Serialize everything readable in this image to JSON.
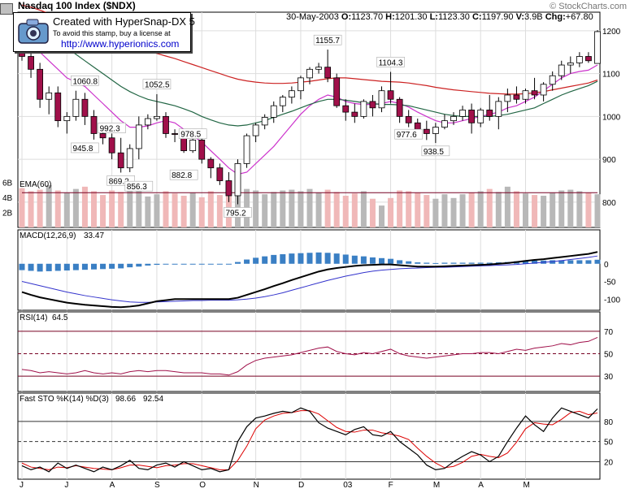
{
  "header": {
    "title": "Nasdaq 100 Index ($NDX)",
    "credit": "© StockCharts.com",
    "date": "30-May-2003",
    "open_label": "O:",
    "open": "1123.70",
    "high_label": "H:",
    "high": "1201.30",
    "low_label": "L:",
    "low": "1123.30",
    "close_label": "C:",
    "close": "1197.90",
    "volume_label": "V:",
    "volume": "3.9B",
    "change_label": "Chg:",
    "change": "+67.80"
  },
  "stamp": {
    "line1": "Created with HyperSnap-DX 5",
    "line2": "To avoid this stamp, buy a license at",
    "line3": "http://www.hyperionics.com"
  },
  "colors": {
    "up": "#ffffff",
    "down": "#a0104a",
    "ema_short": "#cc33cc",
    "ema_mid": "#226644",
    "ema_long": "#cc2222",
    "volume_up": "#b8b8b8",
    "volume_down": "#f0b8b8",
    "macd_hist": "#3a7fc4",
    "macd_line": "#000000",
    "macd_signal": "#3333cc",
    "rsi_line": "#a0104a",
    "sto_k": "#000000",
    "sto_d": "#dd0000"
  },
  "chart_data": [
    {
      "type": "candlestick",
      "title": "Nasdaq 100 Index ($NDX)",
      "period": "weekly",
      "x_months": [
        "J",
        "J",
        "A",
        "S",
        "O",
        "N",
        "D",
        "03",
        "F",
        "M",
        "A",
        "M"
      ],
      "ylim": [
        760,
        1230
      ],
      "yticks": [
        800,
        900,
        1000,
        1100,
        1200
      ],
      "grid": true,
      "ohlc": [
        [
          1200,
          1215,
          1130,
          1140
        ],
        [
          1140,
          1160,
          1090,
          1110
        ],
        [
          1110,
          1125,
          1020,
          1040
        ],
        [
          1040,
          1070,
          1005,
          1055
        ],
        [
          1055,
          1070,
          975,
          990
        ],
        [
          990,
          1010,
          960,
          1000
        ],
        [
          1000,
          1060,
          990,
          1040
        ],
        [
          1040,
          1055,
          980,
          1000
        ],
        [
          1000,
          1015,
          946,
          960
        ],
        [
          960,
          985,
          935,
          950
        ],
        [
          950,
          960,
          900,
          915
        ],
        [
          915,
          950,
          869,
          880
        ],
        [
          880,
          935,
          870,
          925
        ],
        [
          925,
          1000,
          900,
          980
        ],
        [
          980,
          1005,
          970,
          995
        ],
        [
          995,
          1052,
          990,
          1000
        ],
        [
          1000,
          1010,
          950,
          960
        ],
        [
          960,
          970,
          940,
          958
        ],
        [
          958,
          965,
          915,
          920
        ],
        [
          920,
          960,
          915,
          945
        ],
        [
          945,
          960,
          890,
          900
        ],
        [
          900,
          905,
          856,
          880
        ],
        [
          880,
          890,
          840,
          850
        ],
        [
          850,
          870,
          800,
          815
        ],
        [
          815,
          900,
          795,
          890
        ],
        [
          890,
          960,
          880,
          955
        ],
        [
          955,
          985,
          940,
          980
        ],
        [
          980,
          1005,
          970,
          998
        ],
        [
          998,
          1035,
          985,
          1025
        ],
        [
          1025,
          1050,
          1010,
          1045
        ],
        [
          1045,
          1070,
          1030,
          1060
        ],
        [
          1060,
          1095,
          1040,
          1090
        ],
        [
          1090,
          1115,
          1075,
          1110
        ],
        [
          1110,
          1125,
          1100,
          1115
        ],
        [
          1115,
          1156,
          1080,
          1090
        ],
        [
          1090,
          1100,
          1020,
          1025
        ],
        [
          1025,
          1040,
          990,
          1010
        ],
        [
          1010,
          1030,
          985,
          1000
        ],
        [
          1000,
          1040,
          995,
          1035
        ],
        [
          1035,
          1050,
          1000,
          1020
        ],
        [
          1020,
          1070,
          1010,
          1060
        ],
        [
          1060,
          1104,
          1030,
          1040
        ],
        [
          1040,
          1045,
          985,
          1000
        ],
        [
          1000,
          1015,
          975,
          985
        ],
        [
          985,
          995,
          960,
          970
        ],
        [
          970,
          990,
          945,
          960
        ],
        [
          960,
          985,
          938,
          975
        ],
        [
          975,
          1005,
          970,
          990
        ],
        [
          990,
          1010,
          980,
          1000
        ],
        [
          1000,
          1025,
          990,
          1015
        ],
        [
          1015,
          1030,
          960,
          985
        ],
        [
          985,
          1020,
          975,
          1015
        ],
        [
          1015,
          1050,
          990,
          1000
        ],
        [
          1000,
          1045,
          970,
          1035
        ],
        [
          1035,
          1065,
          1010,
          1050
        ],
        [
          1050,
          1070,
          1030,
          1040
        ],
        [
          1040,
          1065,
          1030,
          1060
        ],
        [
          1060,
          1090,
          1040,
          1050
        ],
        [
          1050,
          1080,
          1035,
          1075
        ],
        [
          1075,
          1105,
          1060,
          1095
        ],
        [
          1095,
          1130,
          1085,
          1120
        ],
        [
          1120,
          1140,
          1100,
          1125
        ],
        [
          1125,
          1150,
          1115,
          1140
        ],
        [
          1140,
          1150,
          1125,
          1130
        ],
        [
          1123.7,
          1201.3,
          1123.3,
          1197.9
        ]
      ],
      "price_labels": [
        {
          "text": "1060.8",
          "value": 1060.8,
          "bar": 7
        },
        {
          "text": "992.3",
          "value": 992.3,
          "bar": 10
        },
        {
          "text": "1052.5",
          "value": 1052.5,
          "bar": 15
        },
        {
          "text": "978.5",
          "value": 978.5,
          "bar": 19
        },
        {
          "text": "945.8",
          "value": 945.8,
          "bar": 7
        },
        {
          "text": "869.2",
          "value": 869.2,
          "bar": 11
        },
        {
          "text": "856.3",
          "value": 856.3,
          "bar": 13
        },
        {
          "text": "882.8",
          "value": 882.8,
          "bar": 18
        },
        {
          "text": "795.2",
          "value": 795.2,
          "bar": 24
        },
        {
          "text": "1155.7",
          "value": 1155.7,
          "bar": 34
        },
        {
          "text": "1104.3",
          "value": 1104.3,
          "bar": 41
        },
        {
          "text": "977.6",
          "value": 977.6,
          "bar": 43
        },
        {
          "text": "938.5",
          "value": 938.5,
          "bar": 46
        }
      ],
      "overlays": [
        {
          "name": "",
          "color": "#cc33cc",
          "values": [
            1180,
            1165,
            1150,
            1130,
            1110,
            1090,
            1080,
            1070,
            1050,
            1030,
            1010,
            990,
            975,
            975,
            978,
            985,
            990,
            985,
            970,
            955,
            940,
            920,
            900,
            880,
            865,
            870,
            890,
            910,
            930,
            955,
            980,
            1005,
            1025,
            1040,
            1050,
            1045,
            1035,
            1030,
            1028,
            1028,
            1030,
            1035,
            1030,
            1022,
            1010,
            1000,
            990,
            985,
            985,
            990,
            995,
            1000,
            1005,
            1010,
            1020,
            1025,
            1035,
            1045,
            1060,
            1075,
            1090,
            1100,
            1105,
            1108,
            1120
          ]
        },
        {
          "name": "",
          "color": "#226644",
          "values": [
            1230,
            1220,
            1205,
            1190,
            1175,
            1160,
            1145,
            1130,
            1115,
            1100,
            1085,
            1070,
            1058,
            1048,
            1040,
            1035,
            1030,
            1025,
            1018,
            1010,
            1000,
            992,
            985,
            980,
            978,
            980,
            985,
            990,
            998,
            1005,
            1012,
            1020,
            1028,
            1035,
            1040,
            1040,
            1038,
            1035,
            1032,
            1030,
            1028,
            1028,
            1027,
            1025,
            1020,
            1015,
            1010,
            1005,
            1002,
            1000,
            1000,
            1000,
            1000,
            1002,
            1005,
            1010,
            1015,
            1020,
            1030,
            1040,
            1050,
            1058,
            1065,
            1072,
            1082
          ]
        },
        {
          "name": "",
          "color": "#cc2222",
          "values": [
            1260,
            1255,
            1248,
            1240,
            1232,
            1224,
            1216,
            1208,
            1200,
            1192,
            1184,
            1176,
            1168,
            1160,
            1153,
            1147,
            1141,
            1135,
            1128,
            1121,
            1114,
            1107,
            1100,
            1093,
            1087,
            1083,
            1080,
            1078,
            1077,
            1077,
            1078,
            1080,
            1082,
            1085,
            1088,
            1090,
            1090,
            1088,
            1086,
            1084,
            1082,
            1081,
            1080,
            1078,
            1075,
            1072,
            1068,
            1065,
            1062,
            1060,
            1058,
            1056,
            1054,
            1053,
            1052,
            1052,
            1053,
            1055,
            1058,
            1062,
            1066,
            1070,
            1074,
            1078,
            1085
          ]
        }
      ]
    },
    {
      "type": "bar",
      "title": "EMA(60)",
      "yticks_labels": [
        "2B",
        "4B",
        "6B"
      ],
      "yticks": [
        2,
        4,
        6
      ],
      "ylim": [
        0,
        7
      ],
      "values": [
        5.2,
        4.8,
        5.0,
        5.6,
        4.9,
        4.6,
        5.1,
        5.4,
        4.8,
        4.3,
        4.9,
        4.7,
        5.2,
        5.5,
        4.1,
        4.4,
        4.8,
        4.5,
        4.2,
        4.6,
        4.0,
        4.8,
        4.3,
        5.0,
        4.6,
        5.1,
        4.9,
        4.4,
        4.7,
        4.9,
        5.0,
        4.8,
        5.1,
        4.6,
        5.0,
        4.7,
        4.2,
        4.5,
        4.8,
        3.8,
        2.9,
        3.9,
        4.9,
        4.8,
        4.6,
        4.3,
        3.8,
        4.4,
        3.9,
        4.4,
        4.6,
        4.8,
        5.1,
        4.7,
        5.4,
        4.8,
        4.5,
        4.3,
        4.2,
        4.6,
        4.9,
        5.0,
        4.8,
        4.6,
        4.4
      ],
      "ema": [
        4.6,
        4.6,
        4.6,
        4.6,
        4.6,
        4.6,
        4.6,
        4.6,
        4.6,
        4.6,
        4.6,
        4.6,
        4.6,
        4.6,
        4.6,
        4.6,
        4.6,
        4.6,
        4.6,
        4.6,
        4.6,
        4.6,
        4.6,
        4.6,
        4.6,
        4.6,
        4.6,
        4.6,
        4.6,
        4.6,
        4.6,
        4.6,
        4.6,
        4.6,
        4.6,
        4.6,
        4.6,
        4.6,
        4.6,
        4.6,
        4.6,
        4.6,
        4.6,
        4.6,
        4.6,
        4.6,
        4.6,
        4.6,
        4.6,
        4.6,
        4.6,
        4.6,
        4.6,
        4.6,
        4.6,
        4.6,
        4.6,
        4.6,
        4.6,
        4.6,
        4.6,
        4.6,
        4.6,
        4.6,
        4.6
      ]
    },
    {
      "type": "line",
      "title": "MACD(12,26,9)",
      "value_label": "33.47",
      "ylim": [
        -120,
        50
      ],
      "yticks": [
        0,
        -50,
        -100
      ],
      "macd": [
        -80,
        -88,
        -95,
        -100,
        -105,
        -110,
        -113,
        -116,
        -118,
        -120,
        -122,
        -123,
        -121,
        -118,
        -112,
        -106,
        -103,
        -100,
        -100,
        -100,
        -100,
        -100,
        -100,
        -100,
        -96,
        -88,
        -80,
        -72,
        -63,
        -55,
        -46,
        -38,
        -30,
        -22,
        -16,
        -12,
        -9,
        -6,
        -4,
        -3,
        -2,
        -2,
        -4,
        -6,
        -8,
        -8,
        -8,
        -7,
        -6,
        -5,
        -4,
        -3,
        -2,
        0,
        2,
        5,
        8,
        11,
        13,
        16,
        19,
        22,
        25,
        28,
        33.47
      ],
      "signal": [
        -50,
        -56,
        -62,
        -68,
        -74,
        -80,
        -85,
        -90,
        -94,
        -98,
        -102,
        -105,
        -108,
        -109,
        -109,
        -108,
        -107,
        -106,
        -105,
        -104,
        -104,
        -103,
        -103,
        -103,
        -102,
        -100,
        -97,
        -93,
        -88,
        -82,
        -75,
        -68,
        -61,
        -54,
        -47,
        -41,
        -35,
        -30,
        -25,
        -21,
        -18,
        -16,
        -14,
        -13,
        -12,
        -11,
        -10,
        -10,
        -9,
        -8,
        -7,
        -6,
        -5,
        -4,
        -3,
        -2,
        0,
        2,
        4,
        6,
        9,
        12,
        15,
        18,
        22
      ],
      "histogram": [
        -18,
        -20,
        -22,
        -21,
        -20,
        -19,
        -18,
        -17,
        -16,
        -15,
        -14,
        -13,
        -10,
        -8,
        -5,
        -3,
        -1,
        0,
        0,
        0,
        0,
        0,
        0,
        0,
        5,
        12,
        17,
        21,
        25,
        27,
        29,
        30,
        31,
        32,
        31,
        29,
        26,
        23,
        21,
        18,
        16,
        14,
        10,
        7,
        4,
        3,
        2,
        3,
        3,
        3,
        3,
        3,
        3,
        4,
        5,
        7,
        8,
        9,
        9,
        10,
        10,
        10,
        10,
        10,
        11.4
      ]
    },
    {
      "type": "line",
      "title": "RSI(14)",
      "value_label": "64.5",
      "ylim": [
        20,
        80
      ],
      "yticks": [
        70,
        50,
        30
      ],
      "values": [
        36,
        35,
        33,
        34,
        33,
        32,
        33,
        35,
        33,
        32,
        33,
        32,
        34,
        35,
        34,
        35,
        35,
        34,
        33,
        33,
        33,
        32,
        32,
        31,
        34,
        40,
        44,
        46,
        47,
        48,
        49,
        51,
        53,
        55,
        56,
        52,
        50,
        49,
        51,
        50,
        52,
        54,
        50,
        48,
        47,
        46,
        47,
        48,
        49,
        50,
        50,
        51,
        51,
        50,
        52,
        54,
        53,
        55,
        56,
        57,
        59,
        58,
        60,
        61,
        64.5
      ]
    },
    {
      "type": "line",
      "title": "Fast STO %K(14) %D(3)",
      "value_label_k": "98.66",
      "value_label_d": "92.54",
      "ylim": [
        0,
        110
      ],
      "yticks": [
        80,
        50,
        20
      ],
      "k": [
        14,
        8,
        12,
        5,
        18,
        10,
        15,
        10,
        5,
        12,
        8,
        14,
        22,
        10,
        8,
        15,
        18,
        12,
        20,
        14,
        8,
        10,
        5,
        8,
        50,
        72,
        85,
        88,
        92,
        95,
        93,
        100,
        95,
        78,
        70,
        65,
        60,
        68,
        72,
        60,
        58,
        65,
        50,
        40,
        30,
        15,
        8,
        10,
        20,
        28,
        35,
        30,
        20,
        28,
        50,
        70,
        88,
        75,
        65,
        85,
        100,
        95,
        90,
        85,
        98.66
      ],
      "d": [
        18,
        12,
        10,
        8,
        12,
        11,
        14,
        12,
        10,
        9,
        8,
        11,
        15,
        15,
        13,
        11,
        14,
        15,
        17,
        17,
        14,
        11,
        8,
        8,
        22,
        43,
        69,
        82,
        88,
        92,
        93,
        96,
        96,
        91,
        81,
        71,
        65,
        64,
        67,
        67,
        63,
        61,
        58,
        53,
        40,
        28,
        18,
        11,
        13,
        19,
        28,
        31,
        28,
        26,
        33,
        49,
        69,
        78,
        76,
        75,
        83,
        93,
        95,
        90,
        92.54
      ]
    }
  ]
}
